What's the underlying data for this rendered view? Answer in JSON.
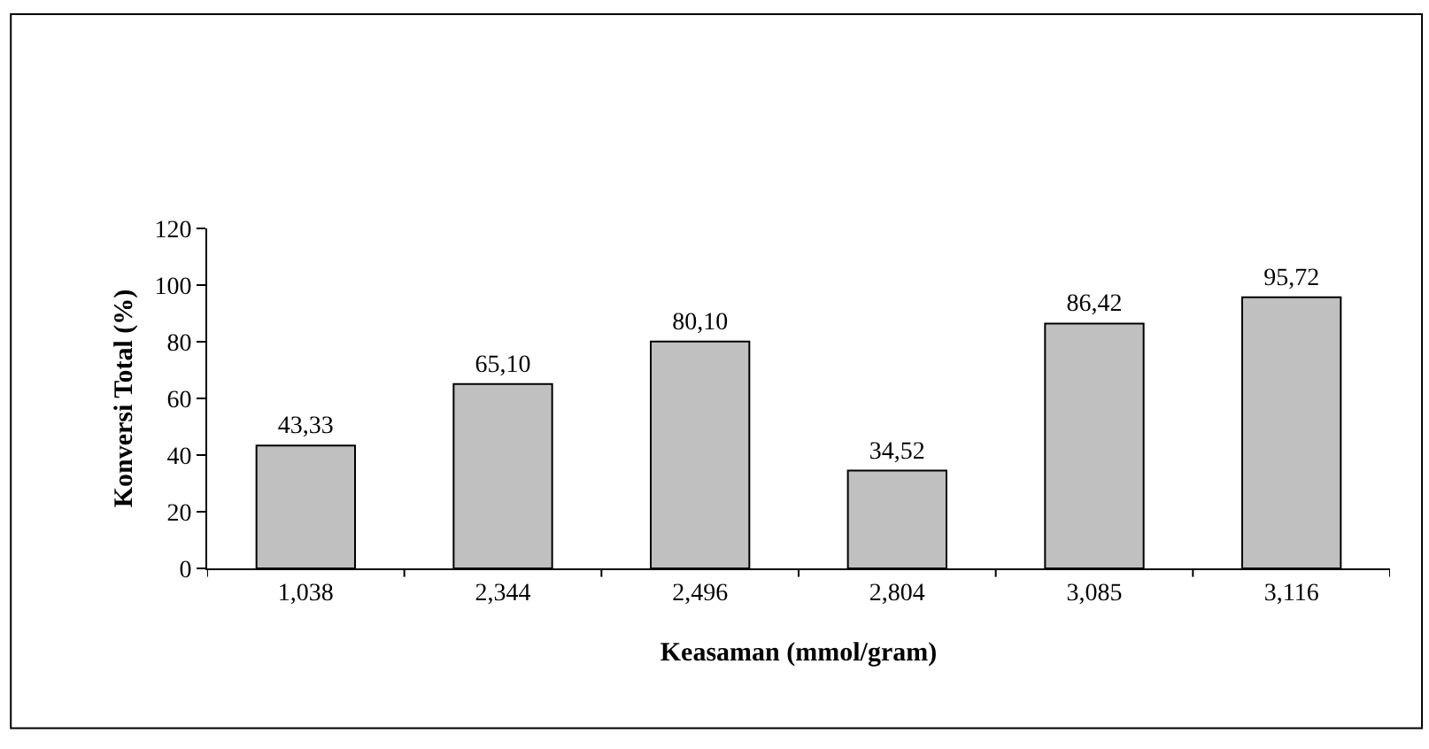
{
  "chart_data": {
    "type": "bar",
    "xlabel": "Keasaman (mmol/gram)",
    "ylabel": "Konversi Total (%)",
    "categories": [
      "1,038",
      "2,344",
      "2,496",
      "2,804",
      "3,085",
      "3,116"
    ],
    "values": [
      43.33,
      65.1,
      80.1,
      34.52,
      86.42,
      95.72
    ],
    "value_labels": [
      "43,33",
      "65,10",
      "80,10",
      "34,52",
      "86,42",
      "95,72"
    ],
    "color": "#c0c0c0",
    "ylim": [
      0,
      120
    ],
    "yticks": [
      0,
      20,
      40,
      60,
      80,
      100,
      120
    ],
    "legend": false
  }
}
